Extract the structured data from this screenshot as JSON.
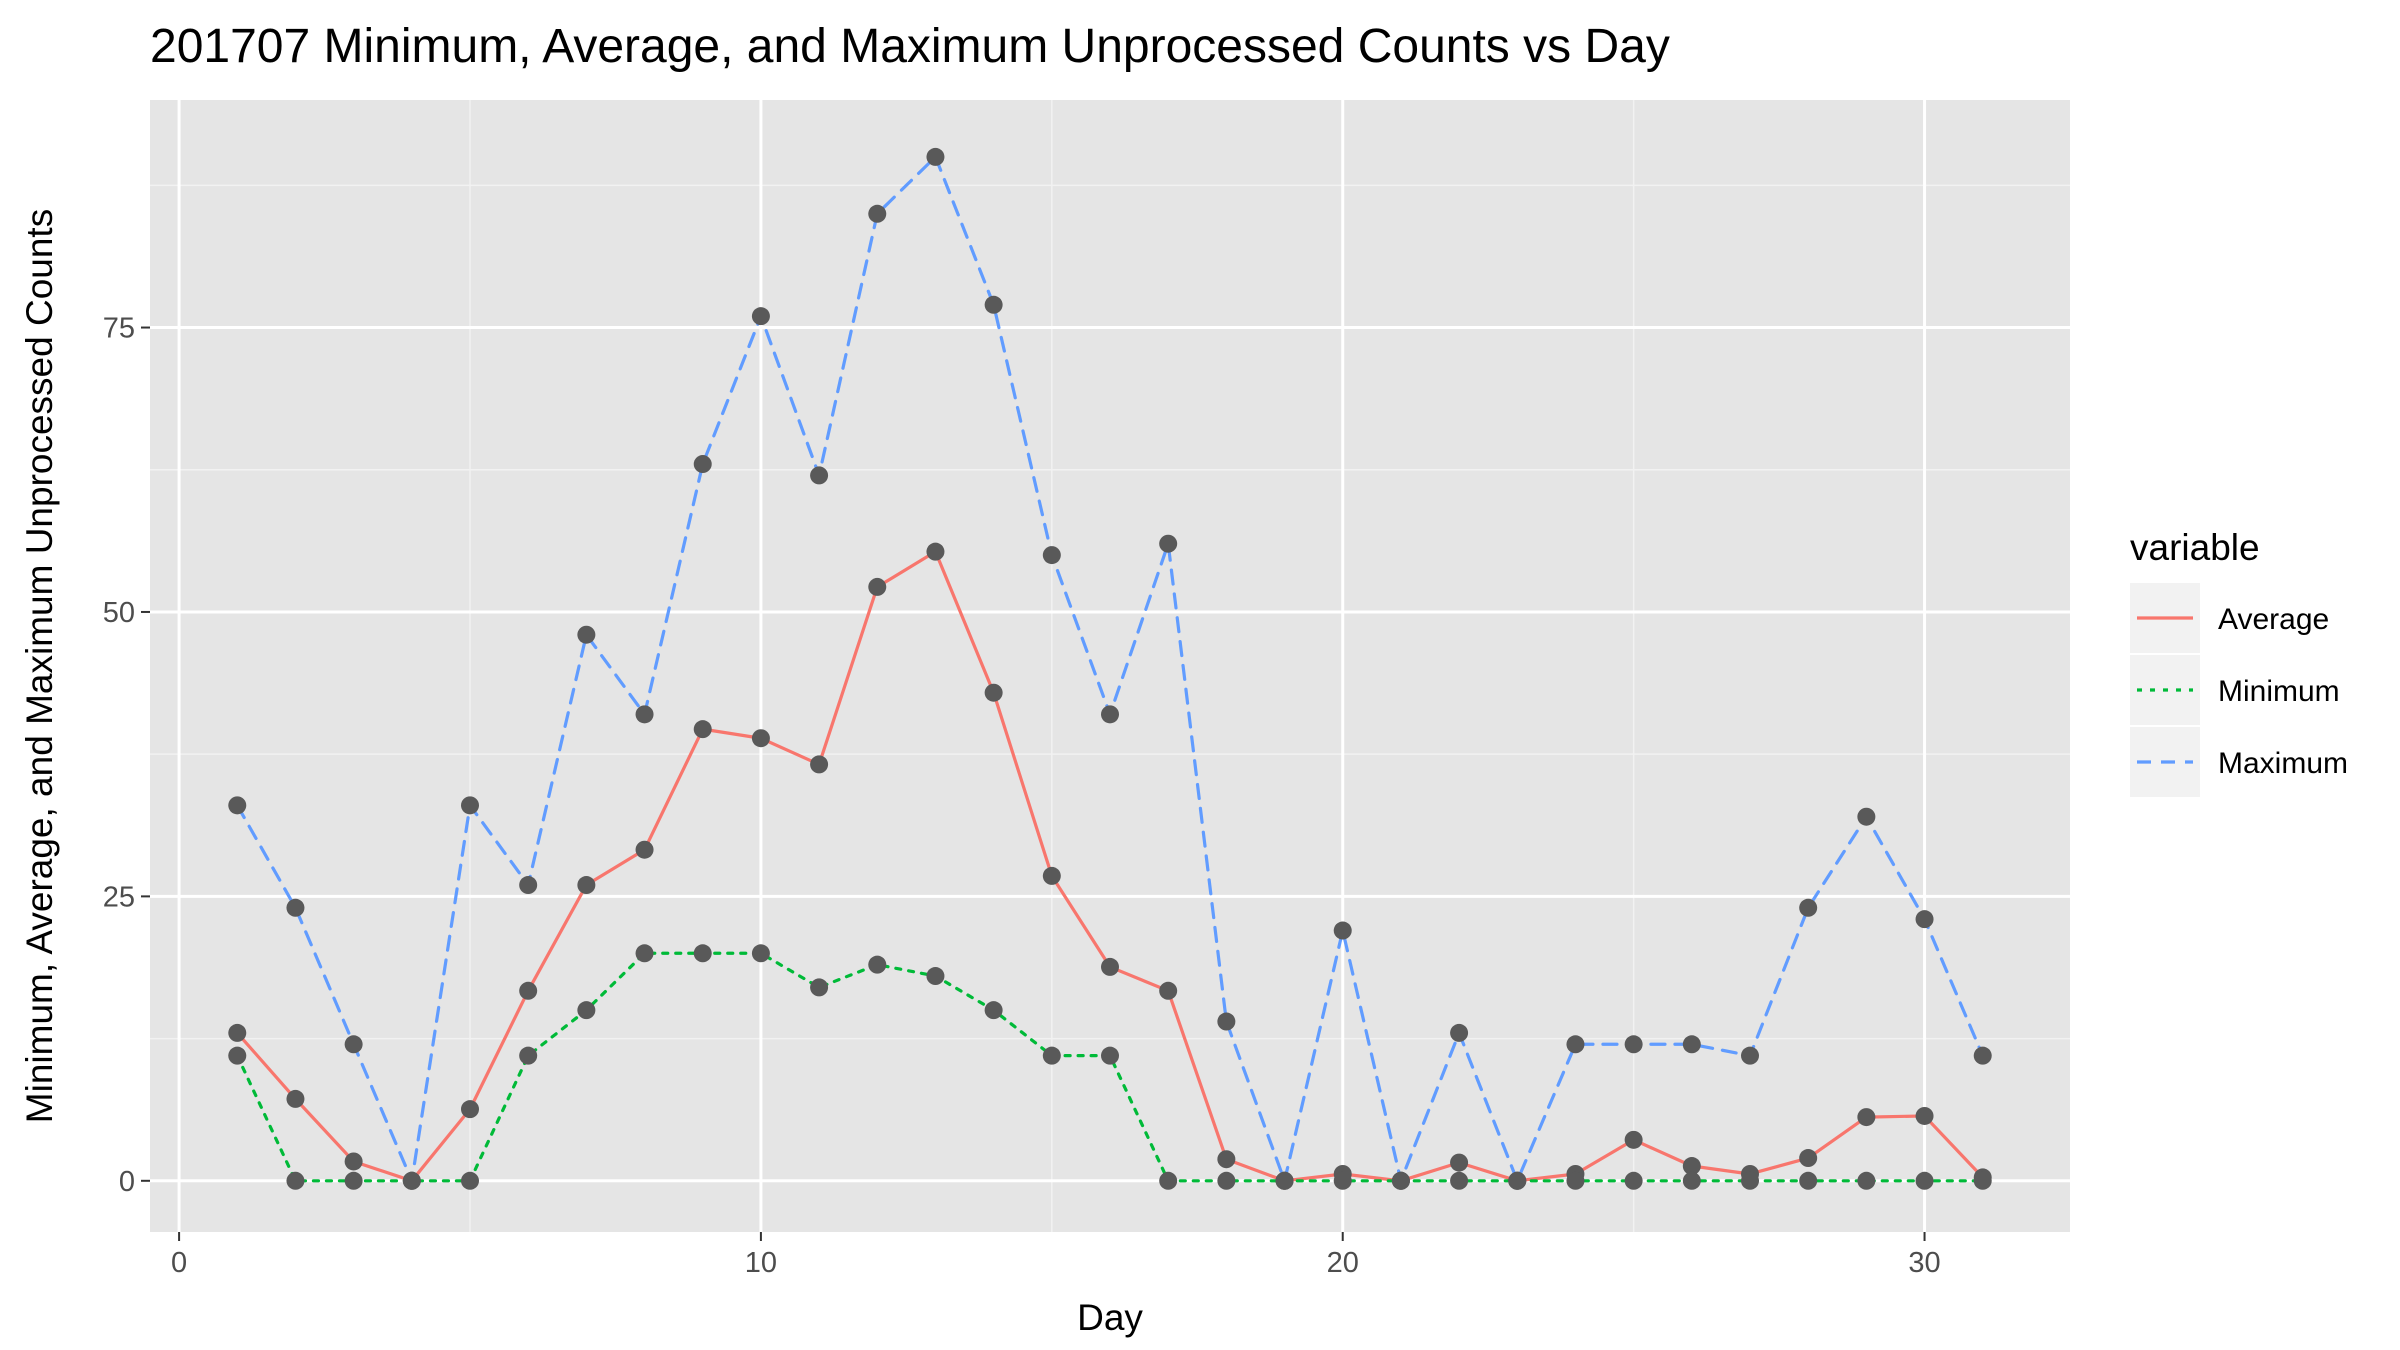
{
  "chart_data": {
    "type": "line",
    "title": "201707 Minimum, Average, and Maximum Unprocessed Counts vs Day",
    "xlabel": "Day",
    "ylabel": "Minimum, Average, and Maximum Unprocessed Counts",
    "xlim": [
      -0.5,
      32.5
    ],
    "ylim": [
      -4.5,
      95
    ],
    "xticks": [
      0,
      10,
      20,
      30
    ],
    "yticks": [
      0,
      25,
      50,
      75
    ],
    "grid": true,
    "legend": {
      "title": "variable",
      "position": "right"
    },
    "point_color": "#595959",
    "x": [
      1,
      2,
      3,
      4,
      5,
      6,
      7,
      8,
      9,
      10,
      11,
      12,
      13,
      14,
      15,
      16,
      17,
      18,
      19,
      20,
      21,
      22,
      23,
      24,
      25,
      26,
      27,
      28,
      29,
      30,
      31
    ],
    "series": [
      {
        "name": "Average",
        "color": "#F8766D",
        "dash": "solid",
        "values": [
          13,
          7.2,
          1.7,
          0,
          6.3,
          16.7,
          26,
          29.1,
          39.7,
          38.9,
          36.6,
          52.2,
          55.3,
          42.9,
          26.8,
          18.8,
          16.7,
          1.9,
          0,
          0.6,
          0,
          1.6,
          0,
          0.6,
          3.6,
          1.3,
          0.6,
          2,
          5.6,
          5.7,
          0.3
        ]
      },
      {
        "name": "Minimum",
        "color": "#00BA38",
        "dash": "dotted",
        "values": [
          11,
          0,
          0,
          0,
          0,
          11,
          15,
          20,
          20,
          20,
          17,
          19,
          18,
          15,
          11,
          11,
          0,
          0,
          0,
          0,
          0,
          0,
          0,
          0,
          0,
          0,
          0,
          0,
          0,
          0,
          0
        ]
      },
      {
        "name": "Maximum",
        "color": "#619CFF",
        "dash": "dashed",
        "values": [
          33,
          24,
          12,
          0,
          33,
          26,
          48,
          41,
          63,
          76,
          62,
          85,
          90,
          77,
          55,
          41,
          56,
          14,
          0,
          22,
          0,
          13,
          0,
          12,
          12,
          12,
          11,
          24,
          32,
          23,
          11
        ]
      }
    ]
  }
}
